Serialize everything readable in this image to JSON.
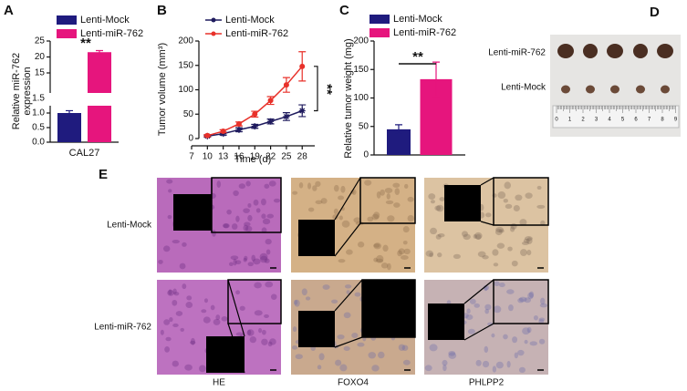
{
  "chart_data": [
    {
      "type": "bar",
      "panel": "A",
      "ylabel_lines": [
        "Relative miR-762",
        "expression"
      ],
      "categories": [
        "CAL27"
      ],
      "series": [
        {
          "name": "Lenti-Mock",
          "color": "#1f1b7e",
          "values": [
            1.0
          ],
          "errors": [
            0.08
          ]
        },
        {
          "name": "Lenti-miR-762",
          "color": "#e6157d",
          "values": [
            21.5
          ],
          "errors": [
            0.5
          ]
        }
      ],
      "ylim": [
        0,
        25
      ],
      "yticks": [
        {
          "value": 0,
          "label": "0.0"
        },
        {
          "value": 0.5,
          "label": "0.5"
        },
        {
          "value": 1,
          "label": "1.0"
        },
        {
          "value": 1.5,
          "label": "1.5"
        },
        15,
        20,
        25
      ],
      "axis_break": [
        1.5,
        15
      ],
      "annotations": [
        "**"
      ]
    },
    {
      "type": "line",
      "panel": "B",
      "xlabel": "Time (d)",
      "ylabel": "Tumor volume (mm³)",
      "x": [
        10,
        13,
        16,
        19,
        22,
        25,
        28
      ],
      "series": [
        {
          "name": "Lenti-Mock",
          "color": "#1f1b5e",
          "values": [
            5,
            10,
            18,
            25,
            35,
            45,
            57
          ],
          "errors": [
            2,
            3,
            4,
            4,
            5,
            8,
            12
          ]
        },
        {
          "name": "Lenti-miR-762",
          "color": "#e8312a",
          "values": [
            6,
            15,
            30,
            50,
            78,
            110,
            148
          ],
          "errors": [
            2,
            3,
            4,
            6,
            8,
            15,
            30
          ]
        }
      ],
      "xlim": [
        7,
        29
      ],
      "xticks": [
        7,
        10,
        13,
        16,
        19,
        22,
        25,
        28
      ],
      "ylim": [
        0,
        200
      ],
      "yticks": [
        0,
        50,
        100,
        150,
        200
      ],
      "annotations": [
        "**"
      ]
    },
    {
      "type": "bar",
      "panel": "C",
      "ylabel": "Relative tumor weight (mg)",
      "series": [
        {
          "name": "Lenti-Mock",
          "color": "#1f1b7e",
          "values": [
            45
          ],
          "errors": [
            8
          ]
        },
        {
          "name": "Lenti-miR-762",
          "color": "#e6157d",
          "values": [
            133
          ],
          "errors": [
            30
          ]
        }
      ],
      "ylim": [
        0,
        200
      ],
      "yticks": [
        0,
        50,
        100,
        150,
        200
      ],
      "annotations": [
        "**"
      ]
    }
  ],
  "panel_D": {
    "letter": "D",
    "row_labels": [
      "Lenti-miR-762",
      "Lenti-Mock"
    ],
    "ruler_labels": [
      "0",
      "1",
      "2",
      "3",
      "4",
      "5",
      "6",
      "7",
      "8",
      "9"
    ]
  },
  "panel_E": {
    "letter": "E",
    "row_labels": [
      "Lenti-Mock",
      "Lenti-miR-762"
    ],
    "column_labels": [
      "HE",
      "FOXO4",
      "PHLPP2"
    ]
  }
}
